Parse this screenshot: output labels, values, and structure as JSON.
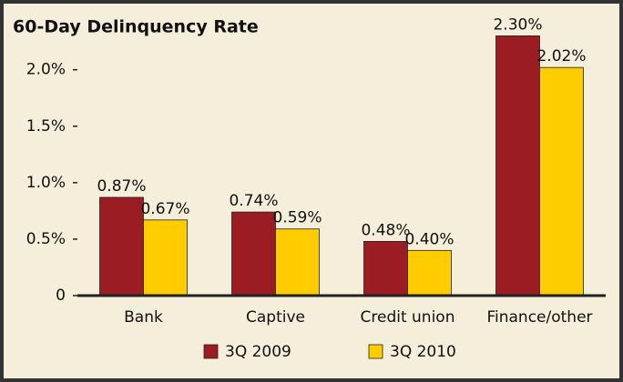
{
  "chart_data": {
    "type": "bar",
    "title": "60-Day Delinquency Rate",
    "categories": [
      "Bank",
      "Captive",
      "Credit union",
      "Finance/other"
    ],
    "series": [
      {
        "name": "3Q 2009",
        "color": "#9b1c22",
        "values": [
          0.87,
          0.74,
          0.48,
          2.3
        ],
        "value_labels": [
          "0.87%",
          "0.74%",
          "0.48%",
          "2.30%"
        ]
      },
      {
        "name": "3Q 2010",
        "color": "#ffcc00",
        "values": [
          0.67,
          0.59,
          0.4,
          2.02
        ],
        "value_labels": [
          "0.67%",
          "0.59%",
          "0.40%",
          "2.02%"
        ]
      }
    ],
    "ylim": [
      0,
      2.4
    ],
    "yticks": [
      0,
      {
        "value": 0.5,
        "label": "0.5%"
      },
      {
        "value": 1.0,
        "label": "1.0%"
      },
      {
        "value": 1.5,
        "label": "1.5%"
      },
      {
        "value": 2.0,
        "label": "2.0%"
      }
    ],
    "legend": "bottom"
  }
}
